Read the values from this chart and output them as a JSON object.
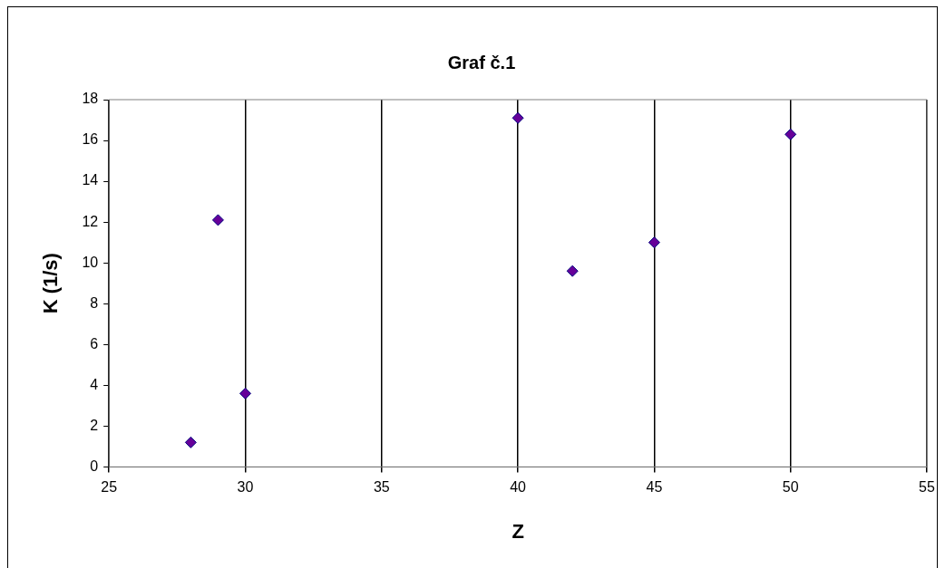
{
  "chart_data": {
    "type": "scatter",
    "title": "Graf č.1",
    "xlabel": "Z",
    "ylabel": "K (1/s)",
    "series": [
      {
        "color": "#660099",
        "x": [
          28,
          29,
          30,
          40,
          42,
          45,
          50
        ],
        "values": [
          1.2,
          12.1,
          3.6,
          17.1,
          9.6,
          11.0,
          16.3
        ]
      }
    ],
    "xlim": [
      25,
      55
    ],
    "xticks": [
      25,
      30,
      35,
      40,
      45,
      50,
      55
    ],
    "ylim": [
      0,
      18
    ],
    "yticks": [
      0,
      2,
      4,
      6,
      8,
      10,
      12,
      14,
      16,
      18
    ],
    "grid": "x",
    "legend": false,
    "marker": "diamond"
  }
}
